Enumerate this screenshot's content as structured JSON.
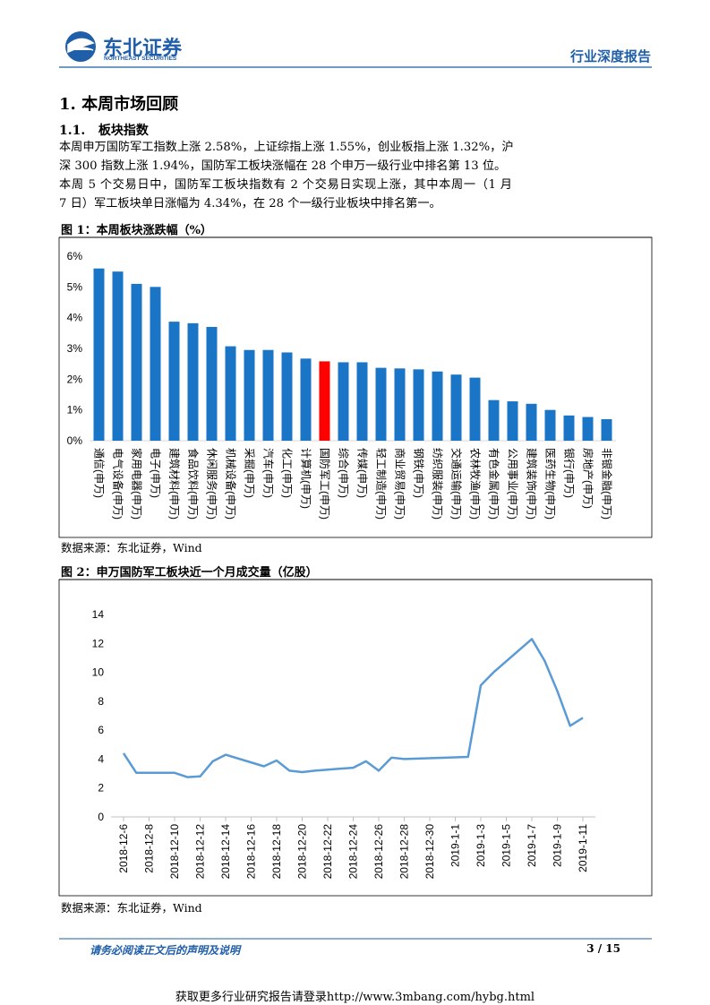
{
  "header": {
    "logo_cn": "东北证券",
    "logo_en": "NORTHEAST SECURITIES",
    "report_type": "行业深度报告"
  },
  "section": {
    "number": "1.",
    "title": "本周市场回顾"
  },
  "subsection": {
    "number": "1.1.",
    "title": "板块指数"
  },
  "paragraphs": [
    [
      "本周申万国防军工指数上涨 2.58%，上证综指上涨 1.55%，创业板指上涨 1.32%，沪",
      "深 300 指数上涨 1.94%，国防军工板块涨幅在 28 个申万一级行业中排名第 13 位。"
    ],
    [
      "本周 5 个交易日中，国防军工板块指数有 2 个交易日实现上涨，其中本周一（1 月",
      "7 日）军工板块单日涨幅为 4.34%，在 28 个一级行业板块中排名第一。"
    ]
  ],
  "chart_data": [
    {
      "type": "bar",
      "title": "图 1：本周板块涨跌幅（%）",
      "source": "数据来源：东北证券，Wind",
      "categories": [
        "通信(申万)",
        "电气设备(申万)",
        "家用电器(申万)",
        "电子(申万)",
        "建筑材料(申万)",
        "食品饮料(申万)",
        "休闲服务(申万)",
        "机械设备(申万)",
        "采掘(申万)",
        "汽车(申万)",
        "化工(申万)",
        "计算机(申万)",
        "国防军工(申万)",
        "综合(申万)",
        "传媒(申万)",
        "轻工制造(申万)",
        "商业贸易(申万)",
        "钢铁(申万)",
        "纺织服装(申万)",
        "交通运输(申万)",
        "农林牧渔(申万)",
        "有色金属(申万)",
        "公用事业(申万)",
        "建筑装饰(申万)",
        "医药生物(申万)",
        "银行(申万)",
        "房地产(申万)",
        "非银金融(申万)"
      ],
      "values": [
        5.6,
        5.5,
        5.1,
        5.0,
        3.87,
        3.82,
        3.7,
        3.07,
        2.95,
        2.95,
        2.87,
        2.67,
        2.58,
        2.55,
        2.55,
        2.37,
        2.35,
        2.32,
        2.25,
        2.15,
        2.05,
        1.32,
        1.28,
        1.2,
        1.0,
        0.82,
        0.77,
        0.7
      ],
      "colors": [
        "#1a75c7",
        "#1a75c7",
        "#1a75c7",
        "#1a75c7",
        "#1a75c7",
        "#1a75c7",
        "#1a75c7",
        "#1a75c7",
        "#1a75c7",
        "#1a75c7",
        "#1a75c7",
        "#1a75c7",
        "#ff0000",
        "#1a75c7",
        "#1a75c7",
        "#1a75c7",
        "#1a75c7",
        "#1a75c7",
        "#1a75c7",
        "#1a75c7",
        "#1a75c7",
        "#1a75c7",
        "#1a75c7",
        "#1a75c7",
        "#1a75c7",
        "#1a75c7",
        "#1a75c7",
        "#1a75c7"
      ],
      "ylim": [
        0,
        6
      ],
      "yticks": [
        {
          "value": 0,
          "label": "0%"
        },
        {
          "value": 1,
          "label": "1%"
        },
        {
          "value": 2,
          "label": "2%"
        },
        {
          "value": 3,
          "label": "3%"
        },
        {
          "value": 4,
          "label": "4%"
        },
        {
          "value": 5,
          "label": "5%"
        },
        {
          "value": 6,
          "label": "6%"
        }
      ]
    },
    {
      "type": "line",
      "title": "图 2：申万国防军工板块近一个月成交量（亿股）",
      "source": "数据来源：东北证券，Wind",
      "color": "#5b9bd5",
      "x": [
        "2018-12-06",
        "2018-12-07",
        "2018-12-10",
        "2018-12-11",
        "2018-12-12",
        "2018-12-13",
        "2018-12-14",
        "2018-12-17",
        "2018-12-18",
        "2018-12-19",
        "2018-12-20",
        "2018-12-21",
        "2018-12-24",
        "2018-12-25",
        "2018-12-26",
        "2018-12-27",
        "2018-12-28",
        "2019-01-02",
        "2019-01-03",
        "2019-01-04",
        "2019-01-07",
        "2019-01-08",
        "2019-01-09",
        "2019-01-10",
        "2019-01-11"
      ],
      "values": [
        4.4,
        3.05,
        3.05,
        2.75,
        2.8,
        3.85,
        4.3,
        3.5,
        3.9,
        3.2,
        3.1,
        3.2,
        3.4,
        3.85,
        3.2,
        4.1,
        4.0,
        4.15,
        9.1,
        10.0,
        12.3,
        10.8,
        8.7,
        6.3,
        6.85
      ],
      "xlim": [
        "2018-12-06",
        "2019-01-11"
      ],
      "xticks": [
        {
          "value": "2018-12-06",
          "label": "2018-12-6"
        },
        {
          "value": "2018-12-08",
          "label": "2018-12-8"
        },
        {
          "value": "2018-12-10",
          "label": "2018-12-10"
        },
        {
          "value": "2018-12-12",
          "label": "2018-12-12"
        },
        {
          "value": "2018-12-14",
          "label": "2018-12-14"
        },
        {
          "value": "2018-12-16",
          "label": "2018-12-16"
        },
        {
          "value": "2018-12-18",
          "label": "2018-12-18"
        },
        {
          "value": "2018-12-20",
          "label": "2018-12-20"
        },
        {
          "value": "2018-12-22",
          "label": "2018-12-22"
        },
        {
          "value": "2018-12-24",
          "label": "2018-12-24"
        },
        {
          "value": "2018-12-26",
          "label": "2018-12-26"
        },
        {
          "value": "2018-12-28",
          "label": "2018-12-28"
        },
        {
          "value": "2018-12-30",
          "label": "2018-12-30"
        },
        {
          "value": "2019-01-01",
          "label": "2019-1-1"
        },
        {
          "value": "2019-01-03",
          "label": "2019-1-3"
        },
        {
          "value": "2019-01-05",
          "label": "2019-1-5"
        },
        {
          "value": "2019-01-07",
          "label": "2019-1-7"
        },
        {
          "value": "2019-01-09",
          "label": "2019-1-9"
        },
        {
          "value": "2019-01-11",
          "label": "2019-1-11"
        }
      ],
      "ylim": [
        0,
        14
      ],
      "yticks": [
        0,
        2,
        4,
        6,
        8,
        10,
        12,
        14
      ]
    }
  ],
  "footer": {
    "disclaimer": "请务必阅读正文后的声明及说明",
    "page": "3 / 15"
  },
  "watermark": "获取更多行业研究报告请登录http://www.3mbang.com/hybg.html"
}
